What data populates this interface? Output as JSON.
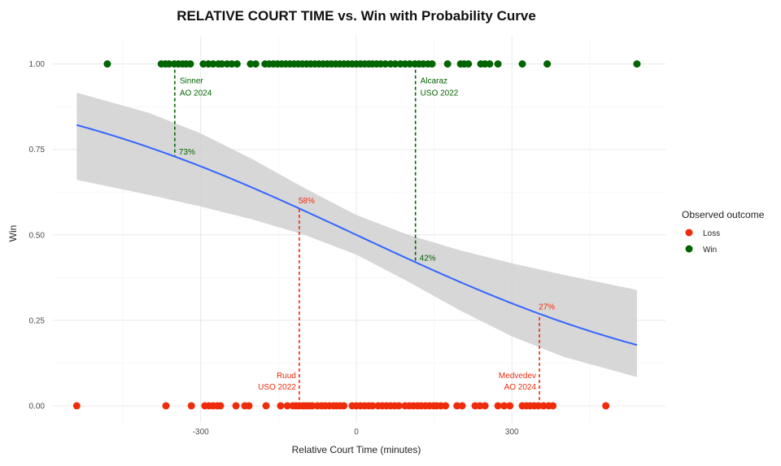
{
  "chart_data": {
    "type": "scatter",
    "title": "RELATIVE COURT TIME vs. Win with Probability Curve",
    "xlabel": "Relative Court Time (minutes)",
    "ylabel": "Win",
    "xlim": [
      -585,
      596
    ],
    "ylim": [
      -0.05,
      1.08
    ],
    "xticks": [
      -300,
      0,
      300
    ],
    "xtick_labels": [
      "-300",
      "0",
      "300"
    ],
    "yticks": [
      0,
      0.25,
      0.5,
      0.75,
      1
    ],
    "ytick_labels": [
      "0.00",
      "0.25",
      "0.50",
      "0.75",
      "1.00"
    ],
    "grid": true,
    "legend": {
      "title": "Observed outcome",
      "position": "right",
      "entries": [
        {
          "label": "Loss",
          "color": "#EE2C0C"
        },
        {
          "label": "Win",
          "color": "#006400"
        }
      ]
    },
    "series": [
      {
        "name": "Win",
        "y": 1,
        "color": "#006400",
        "x": [
          -480,
          -376,
          -368,
          -361,
          -351,
          -343,
          -335,
          -328,
          -320,
          -295,
          -285,
          -276,
          -266,
          -259,
          -249,
          -240,
          -230,
          -204,
          -194,
          -176,
          -168,
          -160,
          -152,
          -144,
          -136,
          -128,
          -120,
          -112,
          -104,
          -96,
          -88,
          -80,
          -72,
          -64,
          -56,
          -48,
          -40,
          -32,
          -24,
          -16,
          -8,
          0,
          8,
          16,
          24,
          31,
          39,
          47,
          56,
          66,
          75,
          85,
          94,
          103,
          113,
          121,
          129,
          138,
          146,
          176,
          201,
          208,
          216,
          240,
          248,
          257,
          273,
          320,
          368,
          541
        ]
      },
      {
        "name": "Loss",
        "y": 0,
        "color": "#EE2C0C",
        "x": [
          -539,
          -367,
          -318,
          -292,
          -284,
          -276,
          -268,
          -262,
          -232,
          -215,
          -207,
          -174,
          -146,
          -133,
          -122,
          -116,
          -110,
          -103,
          -97,
          -91,
          -85,
          -75,
          -67,
          -60,
          -52,
          -44,
          -38,
          -31,
          -24,
          -8,
          0,
          8,
          16,
          24,
          31,
          42,
          50,
          58,
          66,
          74,
          82,
          94,
          102,
          110,
          118,
          125,
          133,
          141,
          149,
          155,
          163,
          172,
          194,
          204,
          229,
          238,
          248,
          273,
          285,
          296,
          320,
          328,
          335,
          343,
          351,
          361,
          371,
          379,
          481
        ]
      }
    ],
    "fit": {
      "name": "Probability curve",
      "color": "#3366FF",
      "intercept": 0.0,
      "slope": -0.00283
    },
    "ci_band": {
      "color": "#D0D0D0",
      "x": [
        -539,
        -400,
        -300,
        -200,
        -100,
        0,
        100,
        200,
        300,
        400,
        541
      ],
      "lower": [
        0.661,
        0.617,
        0.583,
        0.545,
        0.5,
        0.442,
        0.363,
        0.279,
        0.203,
        0.143,
        0.084
      ],
      "upper": [
        0.916,
        0.857,
        0.797,
        0.721,
        0.637,
        0.558,
        0.5,
        0.455,
        0.417,
        0.383,
        0.339
      ]
    },
    "annotations": [
      {
        "name": "Sinner",
        "line1": "Sinner",
        "line2": "AO 2024",
        "x": -350,
        "outcome": 1,
        "prob": 0.73,
        "label": "73%",
        "color": "#006400"
      },
      {
        "name": "Alcaraz",
        "line1": "Alcaraz",
        "line2": "USO 2022",
        "x": 114,
        "outcome": 1,
        "prob": 0.42,
        "label": "42%",
        "color": "#006400"
      },
      {
        "name": "Ruud",
        "line1": "Ruud",
        "line2": "USO 2022",
        "x": -110,
        "outcome": 0,
        "prob": 0.58,
        "label": "58%",
        "color": "#EE2C0C"
      },
      {
        "name": "Medvedev",
        "line1": "Medvedev",
        "line2": "AO 2024",
        "x": 353,
        "outcome": 0,
        "prob": 0.27,
        "label": "27%",
        "color": "#EE2C0C"
      }
    ]
  }
}
